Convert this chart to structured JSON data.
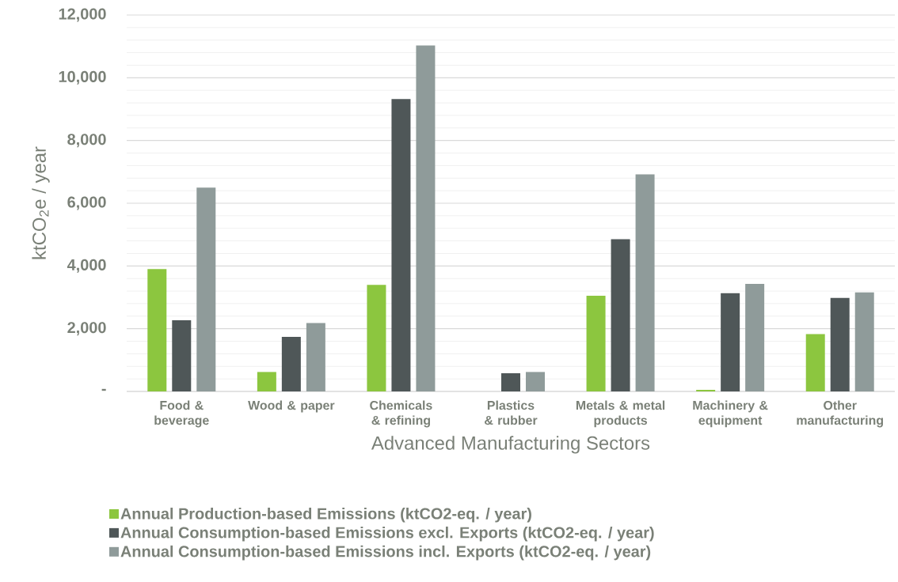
{
  "chart_data": {
    "type": "bar",
    "xlabel": "Advanced Manufacturing Sectors",
    "ylabel": "ktCO$_{2}$e / year",
    "categories": [
      "Food & beverage",
      "Wood & paper",
      "Chemicals & refining",
      "Plastics & rubber",
      "Metals & metal products",
      "Machinery & equipment",
      "Other manufacturing"
    ],
    "series": [
      {
        "name": "Annual Production-based Emissions (ktCO2-eq. / year)",
        "color": "#8cc63f",
        "values": [
          3900,
          620,
          3400,
          0,
          3050,
          50,
          1830
        ]
      },
      {
        "name": "Annual Consumption-based Emissions excl. Exports (ktCO2-eq. / year)",
        "color": "#4f5758",
        "values": [
          2270,
          1740,
          9320,
          580,
          4850,
          3130,
          2980
        ]
      },
      {
        "name": "Annual Consumption-based Emissions incl. Exports (ktCO2-eq. / year)",
        "color": "#8f9b9a",
        "values": [
          6500,
          2180,
          11030,
          620,
          6920,
          3430,
          3160
        ]
      }
    ],
    "ylim": [
      0,
      12000
    ],
    "yticks": [
      {
        "value": 0,
        "label": "-"
      },
      {
        "value": 2000,
        "label": "2,000"
      },
      {
        "value": 4000,
        "label": "4,000"
      },
      {
        "value": 6000,
        "label": "6,000"
      },
      {
        "value": 8000,
        "label": "8,000"
      },
      {
        "value": 10000,
        "label": "10,000"
      },
      {
        "value": 12000,
        "label": "12,000"
      }
    ],
    "grid": "y",
    "legend": "bottom"
  }
}
